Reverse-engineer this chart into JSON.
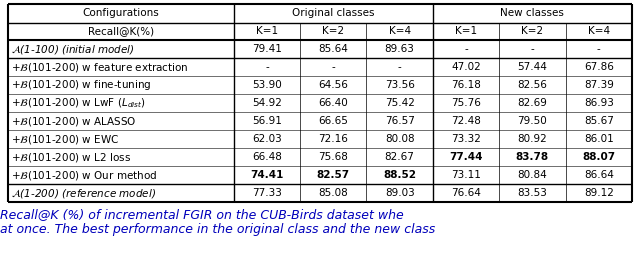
{
  "header_row1": [
    "Configurations",
    "Original classes",
    "New classes"
  ],
  "header_row2": [
    "Recall@K(%)",
    "K=1",
    "K=2",
    "K=4",
    "K=1",
    "K=2",
    "K=4"
  ],
  "rows": [
    {
      "config": "A(1-100) (initial model)",
      "config_italic": true,
      "orig": [
        "79.41",
        "85.64",
        "89.63"
      ],
      "new": [
        "-",
        "-",
        "-"
      ],
      "bold_orig": [
        false,
        false,
        false
      ],
      "bold_new": [
        false,
        false,
        false
      ],
      "separator_after": true
    },
    {
      "config": "+B(101-200) w feature extraction",
      "config_italic": false,
      "orig": [
        "-",
        "-",
        "-"
      ],
      "new": [
        "47.02",
        "57.44",
        "67.86"
      ],
      "bold_orig": [
        false,
        false,
        false
      ],
      "bold_new": [
        false,
        false,
        false
      ],
      "separator_after": false
    },
    {
      "config": "+B(101-200) w fine-tuning",
      "config_italic": false,
      "orig": [
        "53.90",
        "64.56",
        "73.56"
      ],
      "new": [
        "76.18",
        "82.56",
        "87.39"
      ],
      "bold_orig": [
        false,
        false,
        false
      ],
      "bold_new": [
        false,
        false,
        false
      ],
      "separator_after": false
    },
    {
      "config": "+B(101-200) w LwF (L_dist)",
      "config_italic": false,
      "orig": [
        "54.92",
        "66.40",
        "75.42"
      ],
      "new": [
        "75.76",
        "82.69",
        "86.93"
      ],
      "bold_orig": [
        false,
        false,
        false
      ],
      "bold_new": [
        false,
        false,
        false
      ],
      "separator_after": false
    },
    {
      "config": "+B(101-200) w ALASSO",
      "config_italic": false,
      "orig": [
        "56.91",
        "66.65",
        "76.57"
      ],
      "new": [
        "72.48",
        "79.50",
        "85.67"
      ],
      "bold_orig": [
        false,
        false,
        false
      ],
      "bold_new": [
        false,
        false,
        false
      ],
      "separator_after": false
    },
    {
      "config": "+B(101-200) w EWC",
      "config_italic": false,
      "orig": [
        "62.03",
        "72.16",
        "80.08"
      ],
      "new": [
        "73.32",
        "80.92",
        "86.01"
      ],
      "bold_orig": [
        false,
        false,
        false
      ],
      "bold_new": [
        false,
        false,
        false
      ],
      "separator_after": false
    },
    {
      "config": "+B(101-200) w L2 loss",
      "config_italic": false,
      "orig": [
        "66.48",
        "75.68",
        "82.67"
      ],
      "new": [
        "77.44",
        "83.78",
        "88.07"
      ],
      "bold_orig": [
        false,
        false,
        false
      ],
      "bold_new": [
        true,
        true,
        true
      ],
      "separator_after": false
    },
    {
      "config": "+B(101-200) w Our method",
      "config_italic": false,
      "orig": [
        "74.41",
        "82.57",
        "88.52"
      ],
      "new": [
        "73.11",
        "80.84",
        "86.64"
      ],
      "bold_orig": [
        true,
        true,
        true
      ],
      "bold_new": [
        false,
        false,
        false
      ],
      "separator_after": true
    },
    {
      "config": "A(1-200) (reference model)",
      "config_italic": true,
      "orig": [
        "77.33",
        "85.08",
        "89.03"
      ],
      "new": [
        "76.64",
        "83.53",
        "89.12"
      ],
      "bold_orig": [
        false,
        false,
        false
      ],
      "bold_new": [
        false,
        false,
        false
      ],
      "separator_after": false
    }
  ],
  "caption_line1": "Recall@K (%) of incremental FGIR on the CUB-Birds dataset whe",
  "caption_line2": "at once. The best performance in the original class and the new class",
  "caption_color": "#0000bb",
  "bg_color": "#ffffff",
  "font_size": 7.5,
  "caption_font_size": 9.0
}
